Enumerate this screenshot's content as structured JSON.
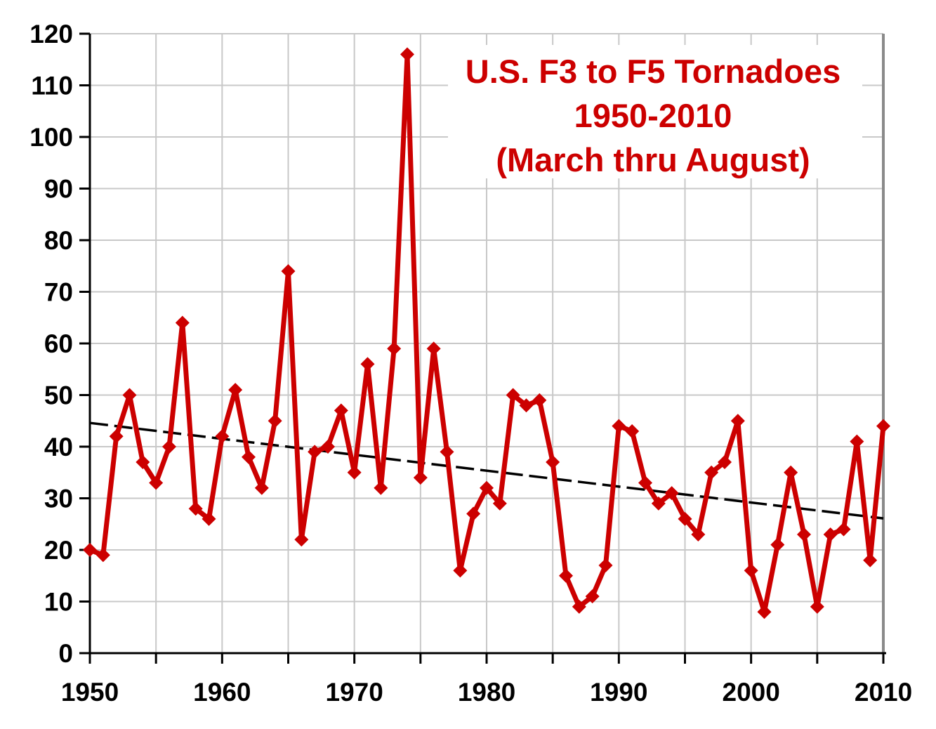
{
  "chart_data": {
    "type": "line",
    "title_lines": [
      "U.S. F3 to F5 Tornadoes",
      "1950-2010",
      "(March thru August)"
    ],
    "x": [
      1950,
      1951,
      1952,
      1953,
      1954,
      1955,
      1956,
      1957,
      1958,
      1959,
      1960,
      1961,
      1962,
      1963,
      1964,
      1965,
      1966,
      1967,
      1968,
      1969,
      1970,
      1971,
      1972,
      1973,
      1974,
      1975,
      1976,
      1977,
      1978,
      1979,
      1980,
      1981,
      1982,
      1983,
      1984,
      1985,
      1986,
      1987,
      1988,
      1989,
      1990,
      1991,
      1992,
      1993,
      1994,
      1995,
      1996,
      1997,
      1998,
      1999,
      2000,
      2001,
      2002,
      2003,
      2004,
      2005,
      2006,
      2007,
      2008,
      2009,
      2010
    ],
    "series": [
      {
        "name": "U.S. F3 to F5 tornadoes (March thru August)",
        "values": [
          20,
          19,
          42,
          50,
          37,
          33,
          40,
          64,
          28,
          26,
          42,
          51,
          38,
          32,
          45,
          74,
          22,
          39,
          40,
          47,
          35,
          56,
          32,
          59,
          116,
          34,
          59,
          39,
          16,
          27,
          32,
          29,
          50,
          48,
          49,
          37,
          15,
          9,
          11,
          17,
          44,
          43,
          33,
          29,
          31,
          26,
          23,
          35,
          37,
          45,
          16,
          8,
          21,
          35,
          23,
          9,
          23,
          24,
          41,
          18,
          44
        ]
      }
    ],
    "trendline": {
      "x": [
        1950,
        2010
      ],
      "y": [
        44.6,
        26.1
      ]
    },
    "xlabel": "",
    "ylabel": "",
    "xlim": [
      1950,
      2010
    ],
    "ylim": [
      0,
      120
    ],
    "x_ticks": [
      1950,
      1955,
      1960,
      1965,
      1970,
      1975,
      1980,
      1985,
      1990,
      1995,
      2000,
      2005,
      2010
    ],
    "x_tick_labels": [
      "1950",
      "1960",
      "1970",
      "1980",
      "1990",
      "2000",
      "2010"
    ],
    "y_ticks": [
      0,
      10,
      20,
      30,
      40,
      50,
      60,
      70,
      80,
      90,
      100,
      110,
      120
    ],
    "grid": true,
    "legend_position": "none",
    "colors": {
      "series": "#cc0000",
      "markers": "#cc0000",
      "trend": "#000000",
      "grid": "#c8c8c8",
      "axis": "#000000",
      "title": "#cc0000",
      "background": "#ffffff"
    }
  }
}
